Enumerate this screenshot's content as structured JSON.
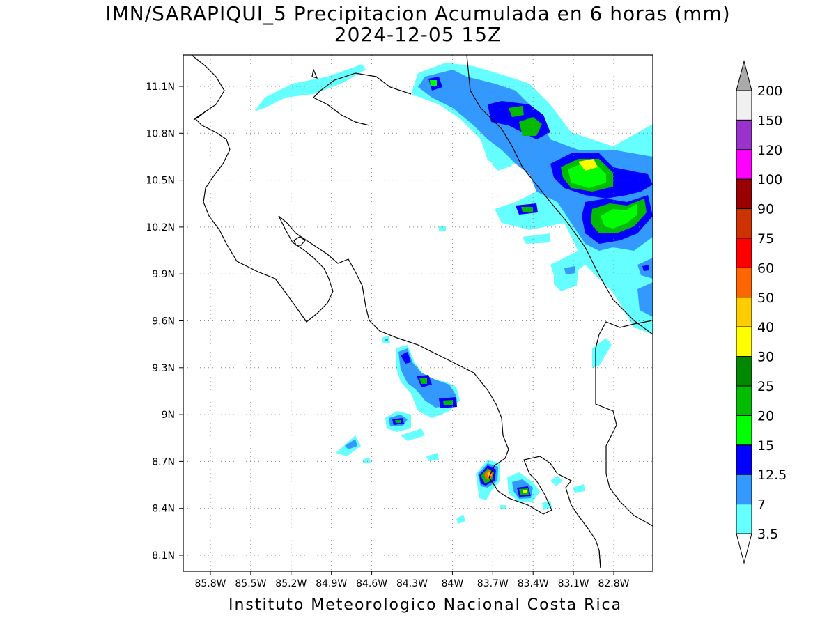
{
  "header": {
    "title": "IMN/SARAPIQUI_5 Precipitacion Acumulada en 6 horas (mm)",
    "subtitle": "2024-12-05 15Z"
  },
  "footer": {
    "credit": "Instituto Meteorologico Nacional Costa Rica"
  },
  "map": {
    "lat_labels": [
      "11.1N",
      "10.8N",
      "10.5N",
      "10.2N",
      "9.9N",
      "9.6N",
      "9.3N",
      "9N",
      "8.7N",
      "8.4N",
      "8.1N"
    ],
    "lon_labels": [
      "85.8W",
      "85.5W",
      "85.2W",
      "84.9W",
      "84.6W",
      "84.3W",
      "84W",
      "83.7W",
      "83.4W",
      "83.1W",
      "82.8W"
    ],
    "grid": true
  },
  "colorbar": {
    "labels": [
      "200",
      "150",
      "120",
      "100",
      "90",
      "75",
      "60",
      "50",
      "40",
      "30",
      "25",
      "20",
      "15",
      "12.5",
      "7",
      "3.5"
    ],
    "colors": [
      "#ffffff",
      "#f0f0f0",
      "#9933cc",
      "#ff00ff",
      "#990000",
      "#cc3300",
      "#ff0000",
      "#ff6600",
      "#ffcc00",
      "#ffff00",
      "#008800",
      "#00bb00",
      "#00ff00",
      "#0000ff",
      "#3399ff",
      "#66ffff"
    ],
    "top_arrow_color": "#aaaaaa",
    "bottom_arrow_color": "#ffffff"
  }
}
